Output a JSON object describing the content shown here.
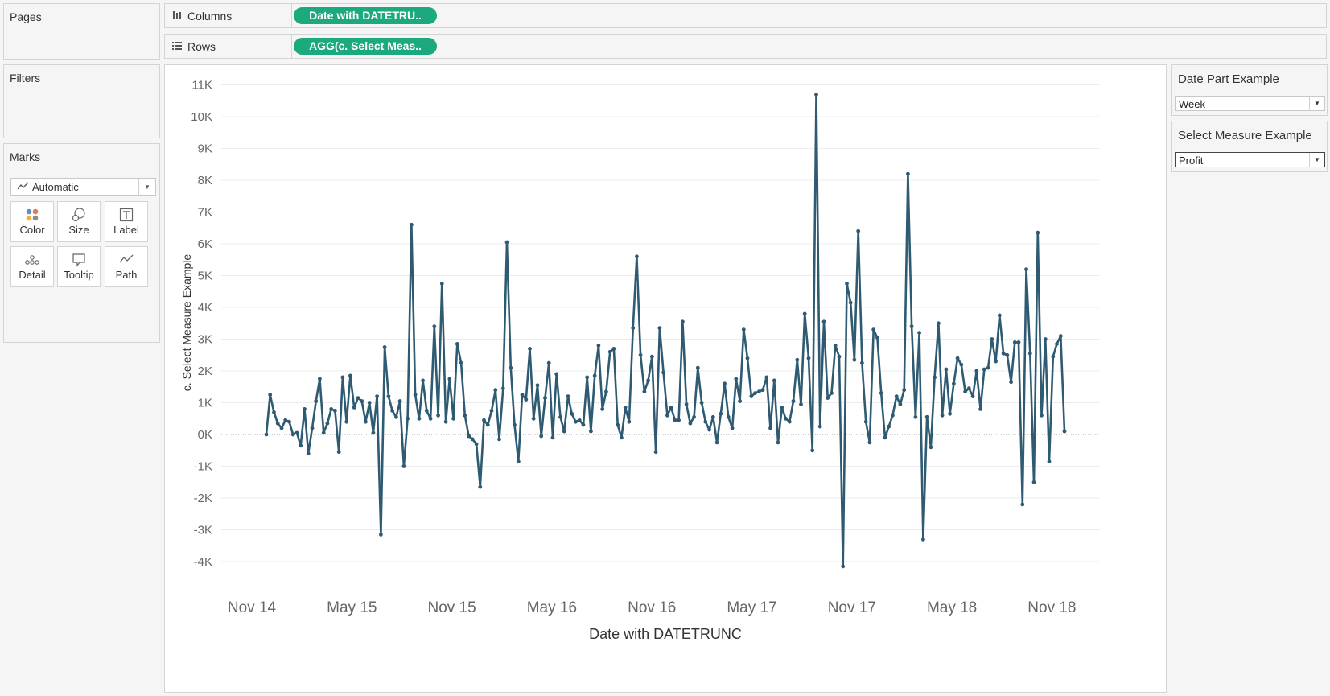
{
  "panels": {
    "pages": "Pages",
    "filters": "Filters",
    "marks": "Marks"
  },
  "marks": {
    "type": "Automatic",
    "type_icon": "line-chart-icon",
    "buttons": [
      {
        "label": "Color",
        "icon": "color-dots-icon"
      },
      {
        "label": "Size",
        "icon": "size-circles-icon"
      },
      {
        "label": "Label",
        "icon": "text-label-icon"
      },
      {
        "label": "Detail",
        "icon": "detail-dots-icon"
      },
      {
        "label": "Tooltip",
        "icon": "tooltip-bubble-icon"
      },
      {
        "label": "Path",
        "icon": "path-line-icon"
      }
    ]
  },
  "shelves": {
    "columns": {
      "label": "Columns",
      "pill": "Date with DATETRU..",
      "icon": "columns-icon"
    },
    "rows": {
      "label": "Rows",
      "pill": "AGG(c. Select Meas..",
      "icon": "rows-icon"
    }
  },
  "parameters": {
    "date_part": {
      "title": "Date Part Example",
      "value": "Week"
    },
    "measure": {
      "title": "Select Measure Example",
      "value": "Profit"
    }
  },
  "colors": {
    "series": "#2e5a72",
    "pill": "#1ba97d",
    "zero_line": "#999999",
    "gridline": "#ececec"
  },
  "chart_data": {
    "type": "line",
    "xlabel": "Date with DATETRUNC",
    "ylabel": "c. Select Measure Example",
    "x_tick_labels": [
      "Nov 14",
      "May 15",
      "Nov 15",
      "May 16",
      "Nov 16",
      "May 17",
      "Nov 17",
      "May 18",
      "Nov 18"
    ],
    "y_tick_labels": [
      "11K",
      "10K",
      "9K",
      "8K",
      "7K",
      "6K",
      "5K",
      "4K",
      "3K",
      "2K",
      "1K",
      "0K",
      "-1K",
      "-2K",
      "-3K",
      "-4K"
    ],
    "ylim": [
      -4800,
      11500
    ],
    "x_range": [
      "2014-11-01",
      "2019-03-15"
    ],
    "grid": true,
    "zero_line": true,
    "markers": true,
    "series": [
      {
        "values": [
          0,
          1250,
          700,
          350,
          200,
          450,
          400,
          0,
          50,
          -350,
          800,
          -600,
          200,
          1050,
          1750,
          50,
          350,
          800,
          750,
          -550,
          1800,
          400,
          1850,
          850,
          1150,
          1050,
          400,
          1000,
          50,
          1200,
          -3150,
          2750,
          1200,
          750,
          550,
          1050,
          -1000,
          500,
          6600,
          1250,
          500,
          1700,
          750,
          500,
          3400,
          600,
          4750,
          400,
          1750,
          500,
          2850,
          2250,
          600,
          -50,
          -150,
          -300,
          -1650,
          450,
          300,
          750,
          1400,
          -150,
          1450,
          6050,
          2100,
          300,
          -850,
          1250,
          1100,
          2700,
          500,
          1550,
          -50,
          1150,
          2250,
          -100,
          1900,
          550,
          100,
          1200,
          650,
          400,
          450,
          300,
          1800,
          100,
          1850,
          2800,
          800,
          1350,
          2600,
          2700,
          300,
          -100,
          850,
          400,
          3350,
          5600,
          2500,
          1350,
          1700,
          2450,
          -550,
          3350,
          1950,
          600,
          850,
          450,
          450,
          3550,
          950,
          350,
          550,
          2100,
          1000,
          400,
          150,
          550,
          -250,
          650,
          1600,
          550,
          200,
          1750,
          1050,
          3300,
          2400,
          1200,
          1300,
          1350,
          1400,
          1800,
          200,
          1700,
          -250,
          850,
          500,
          400,
          1050,
          2350,
          950,
          3800,
          2400,
          -500,
          10700,
          250,
          3550,
          1150,
          1300,
          2800,
          2450,
          -4150,
          4750,
          4150,
          2350,
          6400,
          2250,
          400,
          -250,
          3300,
          3050,
          1300,
          -100,
          250,
          600,
          1200,
          950,
          1400,
          8200,
          3400,
          550,
          3200,
          -3300,
          550,
          -400,
          1800,
          3500,
          600,
          2050,
          650,
          1600,
          2400,
          2200,
          1350,
          1450,
          1200,
          2000,
          800,
          2050,
          2100,
          3000,
          2300,
          3750,
          2550,
          2500,
          1650,
          2900,
          2900,
          -2200,
          5200,
          2550,
          -1500,
          6350,
          600,
          3000,
          -850,
          2450,
          2850,
          3100,
          100
        ]
      }
    ]
  }
}
